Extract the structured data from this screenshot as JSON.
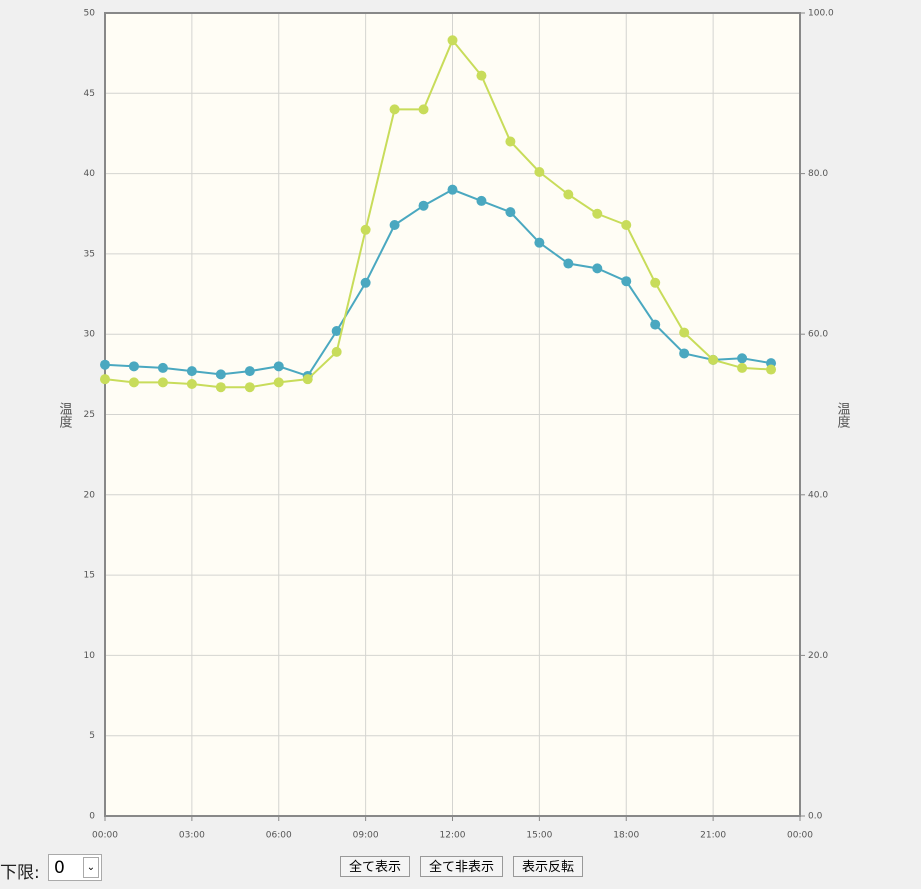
{
  "chart_data": {
    "type": "line",
    "y_label": "温度",
    "y2_label": "温度",
    "x": [
      0,
      1,
      2,
      3,
      4,
      5,
      6,
      7,
      8,
      9,
      10,
      11,
      12,
      13,
      14,
      15,
      16,
      17,
      18,
      19,
      20,
      21,
      22,
      23
    ],
    "xlim": [
      0,
      24
    ],
    "xticks": [
      {
        "value": 0,
        "label": "00:00"
      },
      {
        "value": 3,
        "label": "03:00"
      },
      {
        "value": 6,
        "label": "06:00"
      },
      {
        "value": 9,
        "label": "09:00"
      },
      {
        "value": 12,
        "label": "12:00"
      },
      {
        "value": 15,
        "label": "15:00"
      },
      {
        "value": 18,
        "label": "18:00"
      },
      {
        "value": 21,
        "label": "21:00"
      },
      {
        "value": 24,
        "label": "00:00"
      }
    ],
    "ylim": [
      0,
      50
    ],
    "yticks": [
      0,
      5,
      10,
      15,
      20,
      25,
      30,
      35,
      40,
      45,
      50
    ],
    "y2lim": [
      0,
      100
    ],
    "y2ticks": [
      {
        "value": 0,
        "label": "0.0"
      },
      {
        "value": 20,
        "label": "20.0"
      },
      {
        "value": 40,
        "label": "40.0"
      },
      {
        "value": 60,
        "label": "60.0"
      },
      {
        "value": 80,
        "label": "80.0"
      },
      {
        "value": 100,
        "label": "100.0"
      }
    ],
    "grid": true,
    "series": [
      {
        "color": "#4aa8c0",
        "values": [
          28.1,
          28.0,
          27.9,
          27.7,
          27.5,
          27.7,
          28.0,
          27.4,
          30.2,
          33.2,
          36.8,
          38.0,
          39.0,
          38.3,
          37.6,
          35.7,
          34.4,
          34.1,
          33.3,
          30.6,
          28.8,
          28.4,
          28.5,
          28.2
        ]
      },
      {
        "color": "#c8dc5a",
        "values": [
          27.2,
          27.0,
          27.0,
          26.9,
          26.7,
          26.7,
          27.0,
          27.2,
          28.9,
          36.5,
          44.0,
          44.0,
          48.3,
          46.1,
          42.0,
          40.1,
          38.7,
          37.5,
          36.8,
          33.2,
          30.1,
          28.4,
          27.9,
          27.8
        ]
      }
    ]
  },
  "controls": {
    "lower_limit_label": "下限:",
    "lower_limit_value": "0",
    "buttons": [
      "全て表示",
      "全て非表示",
      "表示反転"
    ]
  }
}
